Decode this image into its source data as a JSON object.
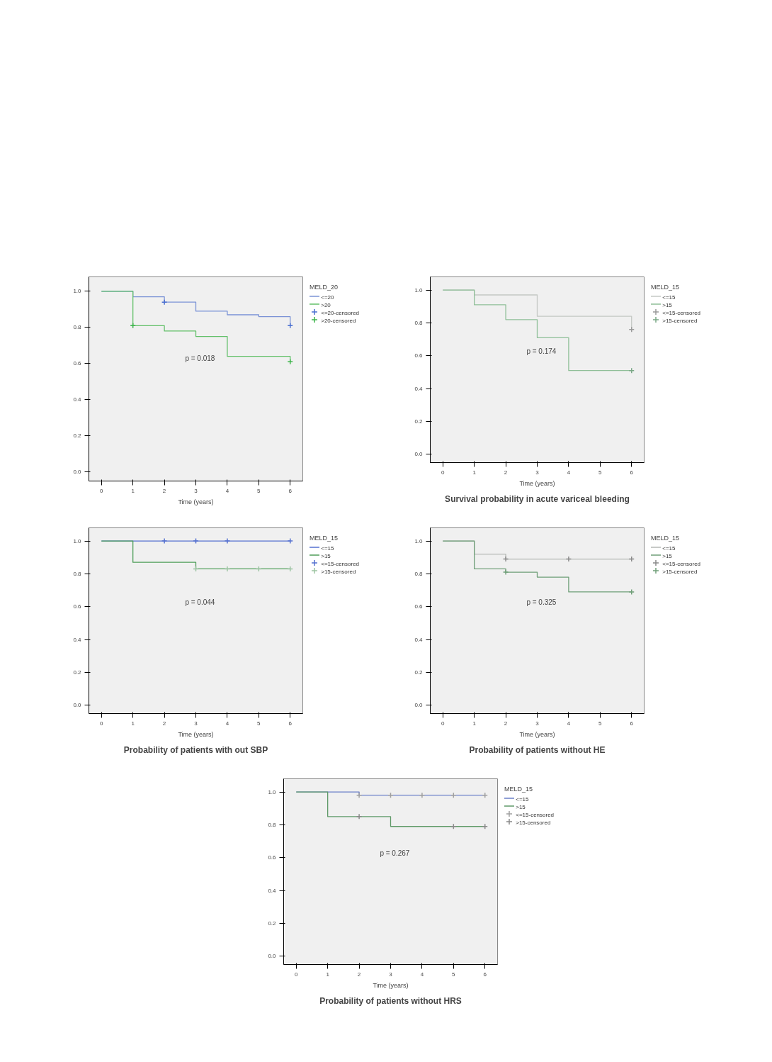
{
  "chart_data": [
    {
      "type": "step",
      "xlabel": "Time (years)",
      "legend_title": "MELD_20",
      "legend": "right",
      "grid": false,
      "annotations": [
        "p = 0.018"
      ],
      "xlim": [
        -0.4,
        6.4
      ],
      "ylim": [
        -0.05,
        1.08
      ],
      "xticks": [
        0,
        1,
        2,
        3,
        4,
        5,
        6
      ],
      "yticks": [
        {
          "value": 0,
          "label": "0.0"
        },
        {
          "value": 0.2,
          "label": "0.2"
        },
        {
          "value": 0.4,
          "label": "0.4"
        },
        {
          "value": 0.6,
          "label": "0.6"
        },
        {
          "value": 0.8,
          "label": "0.8"
        },
        {
          "value": 1,
          "label": "1.0"
        }
      ],
      "series": [
        {
          "name": "<=20",
          "color": "#7b93d6",
          "x": [
            0,
            1,
            2,
            3,
            4,
            5,
            6
          ],
          "values": [
            1.0,
            0.97,
            0.94,
            0.89,
            0.87,
            0.86,
            0.81
          ]
        },
        {
          "name": ">20",
          "color": "#63c06a",
          "x": [
            0,
            1,
            2,
            3,
            4,
            5,
            6
          ],
          "values": [
            1.0,
            0.81,
            0.78,
            0.75,
            0.64,
            0.64,
            0.61
          ]
        },
        {
          "name": "<=20-censored",
          "type": "scatter",
          "marker": "cross",
          "color": "#4a6fd0",
          "x": [
            2,
            6
          ],
          "values": [
            0.94,
            0.81
          ]
        },
        {
          "name": ">20-censored",
          "type": "scatter",
          "marker": "cross",
          "color": "#3cb44a",
          "x": [
            1,
            6
          ],
          "values": [
            0.81,
            0.61
          ]
        }
      ]
    },
    {
      "type": "step",
      "title": "Survival probability in acute variceal bleeding",
      "xlabel": "Time (years)",
      "legend_title": "MELD_15",
      "legend": "right",
      "grid": false,
      "annotations": [
        "p = 0.174"
      ],
      "xlim": [
        -0.4,
        6.4
      ],
      "ylim": [
        -0.05,
        1.08
      ],
      "xticks": [
        0,
        1,
        2,
        3,
        4,
        5,
        6
      ],
      "yticks": [
        {
          "value": 0,
          "label": "0.0"
        },
        {
          "value": 0.2,
          "label": "0.2"
        },
        {
          "value": 0.4,
          "label": "0.4"
        },
        {
          "value": 0.6,
          "label": "0.6"
        },
        {
          "value": 0.8,
          "label": "0.8"
        },
        {
          "value": 1,
          "label": "1.0"
        }
      ],
      "series": [
        {
          "name": "<=15",
          "color": "#c4c8c4",
          "x": [
            0,
            1,
            2,
            3,
            4,
            5,
            6
          ],
          "values": [
            1.0,
            0.97,
            0.97,
            0.84,
            0.84,
            0.84,
            0.76
          ]
        },
        {
          "name": ">15",
          "color": "#8fbf98",
          "x": [
            0,
            1,
            2,
            3,
            4,
            5,
            6
          ],
          "values": [
            1.0,
            0.91,
            0.82,
            0.71,
            0.51,
            0.51,
            0.51
          ]
        },
        {
          "name": "<=15-censored",
          "type": "scatter",
          "marker": "cross",
          "color": "#9a9a9a",
          "x": [
            6
          ],
          "values": [
            0.76
          ]
        },
        {
          "name": ">15-censored",
          "type": "scatter",
          "marker": "cross",
          "color": "#7aa886",
          "x": [
            6
          ],
          "values": [
            0.51
          ]
        }
      ]
    },
    {
      "type": "step",
      "title": "Probability of patients with out SBP",
      "xlabel": "Time (years)",
      "legend_title": "MELD_15",
      "legend": "right",
      "grid": false,
      "annotations": [
        "p = 0.044"
      ],
      "xlim": [
        -0.4,
        6.4
      ],
      "ylim": [
        -0.05,
        1.08
      ],
      "xticks": [
        0,
        1,
        2,
        3,
        4,
        5,
        6
      ],
      "yticks": [
        {
          "value": 0,
          "label": "0.0"
        },
        {
          "value": 0.2,
          "label": "0.2"
        },
        {
          "value": 0.4,
          "label": "0.4"
        },
        {
          "value": 0.6,
          "label": "0.6"
        },
        {
          "value": 0.8,
          "label": "0.8"
        },
        {
          "value": 1,
          "label": "1.0"
        }
      ],
      "series": [
        {
          "name": "<=15",
          "color": "#5470d0",
          "x": [
            0,
            1,
            2,
            3,
            4,
            5,
            6
          ],
          "values": [
            1.0,
            1.0,
            1.0,
            1.0,
            1.0,
            1.0,
            1.0
          ]
        },
        {
          "name": ">15",
          "color": "#4f9e5a",
          "x": [
            0,
            1,
            2,
            3,
            4,
            5,
            6
          ],
          "values": [
            1.0,
            0.87,
            0.87,
            0.83,
            0.83,
            0.83,
            0.83
          ]
        },
        {
          "name": "<=15-censored",
          "type": "scatter",
          "marker": "cross",
          "color": "#5470d0",
          "x": [
            2,
            3,
            4,
            6
          ],
          "values": [
            1.0,
            1.0,
            1.0,
            1.0
          ]
        },
        {
          "name": ">15-censored",
          "type": "scatter",
          "marker": "cross",
          "color": "#9cc4a2",
          "x": [
            3,
            4,
            5,
            6
          ],
          "values": [
            0.83,
            0.83,
            0.83,
            0.83
          ]
        }
      ]
    },
    {
      "type": "step",
      "title": "Probability of patients without HE",
      "xlabel": "Time (years)",
      "legend_title": "MELD_15",
      "legend": "right",
      "grid": false,
      "annotations": [
        "p = 0.325"
      ],
      "xlim": [
        -0.4,
        6.4
      ],
      "ylim": [
        -0.05,
        1.08
      ],
      "xticks": [
        0,
        1,
        2,
        3,
        4,
        5,
        6
      ],
      "yticks": [
        {
          "value": 0,
          "label": "0.0"
        },
        {
          "value": 0.2,
          "label": "0.2"
        },
        {
          "value": 0.4,
          "label": "0.4"
        },
        {
          "value": 0.6,
          "label": "0.6"
        },
        {
          "value": 0.8,
          "label": "0.8"
        },
        {
          "value": 1,
          "label": "1.0"
        }
      ],
      "series": [
        {
          "name": "<=15",
          "color": "#b4b8b4",
          "x": [
            0,
            1,
            2,
            3,
            4,
            5,
            6
          ],
          "values": [
            1.0,
            0.92,
            0.89,
            0.89,
            0.89,
            0.89,
            0.89
          ]
        },
        {
          "name": ">15",
          "color": "#6f9f78",
          "x": [
            0,
            1,
            2,
            3,
            4,
            5,
            6
          ],
          "values": [
            1.0,
            0.83,
            0.81,
            0.78,
            0.69,
            0.69,
            0.69
          ]
        },
        {
          "name": "<=15-censored",
          "type": "scatter",
          "marker": "cross",
          "color": "#8a8a8a",
          "x": [
            2,
            4,
            6
          ],
          "values": [
            0.89,
            0.89,
            0.89
          ]
        },
        {
          "name": ">15-censored",
          "type": "scatter",
          "marker": "cross",
          "color": "#6f9f78",
          "x": [
            2,
            6
          ],
          "values": [
            0.81,
            0.69
          ]
        }
      ]
    },
    {
      "type": "step",
      "title": "Probability of patients without HRS",
      "xlabel": "Time (years)",
      "legend_title": "MELD_15",
      "legend": "right",
      "grid": false,
      "annotations": [
        "p = 0.267"
      ],
      "xlim": [
        -0.4,
        6.4
      ],
      "ylim": [
        -0.05,
        1.08
      ],
      "xticks": [
        0,
        1,
        2,
        3,
        4,
        5,
        6
      ],
      "yticks": [
        {
          "value": 0,
          "label": "0.0"
        },
        {
          "value": 0.2,
          "label": "0.2"
        },
        {
          "value": 0.4,
          "label": "0.4"
        },
        {
          "value": 0.6,
          "label": "0.6"
        },
        {
          "value": 0.8,
          "label": "0.8"
        },
        {
          "value": 1,
          "label": "1.0"
        }
      ],
      "series": [
        {
          "name": "<=15",
          "color": "#6a7fc8",
          "x": [
            0,
            1,
            2,
            3,
            4,
            5,
            6
          ],
          "values": [
            1.0,
            1.0,
            0.98,
            0.98,
            0.98,
            0.98,
            0.98
          ]
        },
        {
          "name": ">15",
          "color": "#5f9a68",
          "x": [
            0,
            1,
            2,
            3,
            4,
            5,
            6
          ],
          "values": [
            1.0,
            0.85,
            0.85,
            0.79,
            0.79,
            0.79,
            0.79
          ]
        },
        {
          "name": "<=15-censored",
          "type": "scatter",
          "marker": "cross",
          "color": "#a0a0a0",
          "x": [
            2,
            3,
            4,
            5,
            6
          ],
          "values": [
            0.98,
            0.98,
            0.98,
            0.98,
            0.98
          ]
        },
        {
          "name": ">15-censored",
          "type": "scatter",
          "marker": "cross",
          "color": "#8a8a8a",
          "x": [
            2,
            5,
            6
          ],
          "values": [
            0.85,
            0.79,
            0.79
          ]
        }
      ]
    }
  ]
}
